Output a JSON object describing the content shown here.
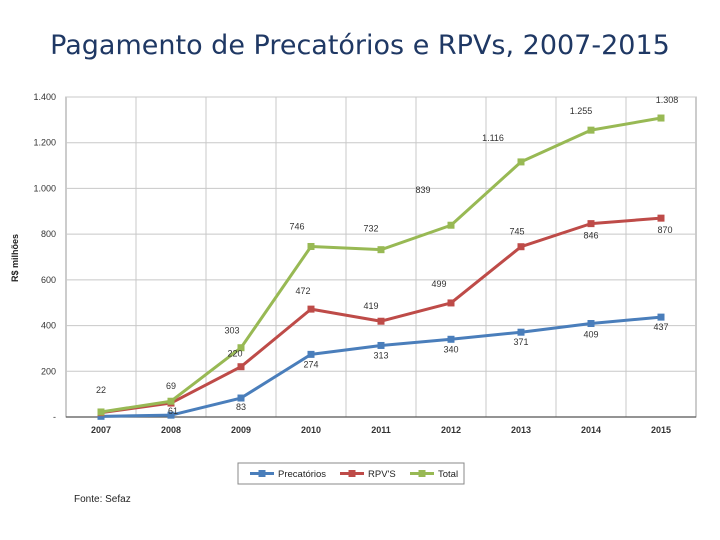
{
  "page": {
    "title": "Pagamento de Precatórios e RPVs, 2007-2015",
    "source": "Fonte: Sefaz"
  },
  "chart_data": {
    "type": "line",
    "title": "",
    "xlabel": "",
    "ylabel": "R$ milhões",
    "categories": [
      "2007",
      "2008",
      "2009",
      "2010",
      "2011",
      "2012",
      "2013",
      "2014",
      "2015"
    ],
    "ylim": [
      0,
      1400
    ],
    "yticks": [
      0,
      200,
      400,
      600,
      800,
      1000,
      1200,
      1400
    ],
    "ytick_labels": [
      "-",
      "200",
      "400",
      "600",
      "800",
      "1.000",
      "1.200",
      "1.400"
    ],
    "grid": true,
    "legend_position": "bottom",
    "series": [
      {
        "name": "Precatórios",
        "color": "#4a7ebb",
        "values": [
          3,
          8,
          83,
          274,
          313,
          340,
          371,
          409,
          437
        ],
        "labels": [
          "",
          "",
          "83",
          "274",
          "313",
          "340",
          "371",
          "409",
          "437"
        ]
      },
      {
        "name": "RPV'S",
        "color": "#be4b48",
        "values": [
          19,
          61,
          220,
          472,
          419,
          499,
          745,
          846,
          870
        ],
        "labels": [
          "",
          "61",
          "220",
          "472",
          "419",
          "499",
          "745",
          "846",
          "870"
        ]
      },
      {
        "name": "Total",
        "color": "#98b954",
        "values": [
          22,
          69,
          303,
          746,
          732,
          839,
          1116,
          1255,
          1308
        ],
        "labels": [
          "22",
          "69",
          "303",
          "746",
          "732",
          "839",
          "1.116",
          "1.255",
          "1.308"
        ]
      }
    ]
  }
}
